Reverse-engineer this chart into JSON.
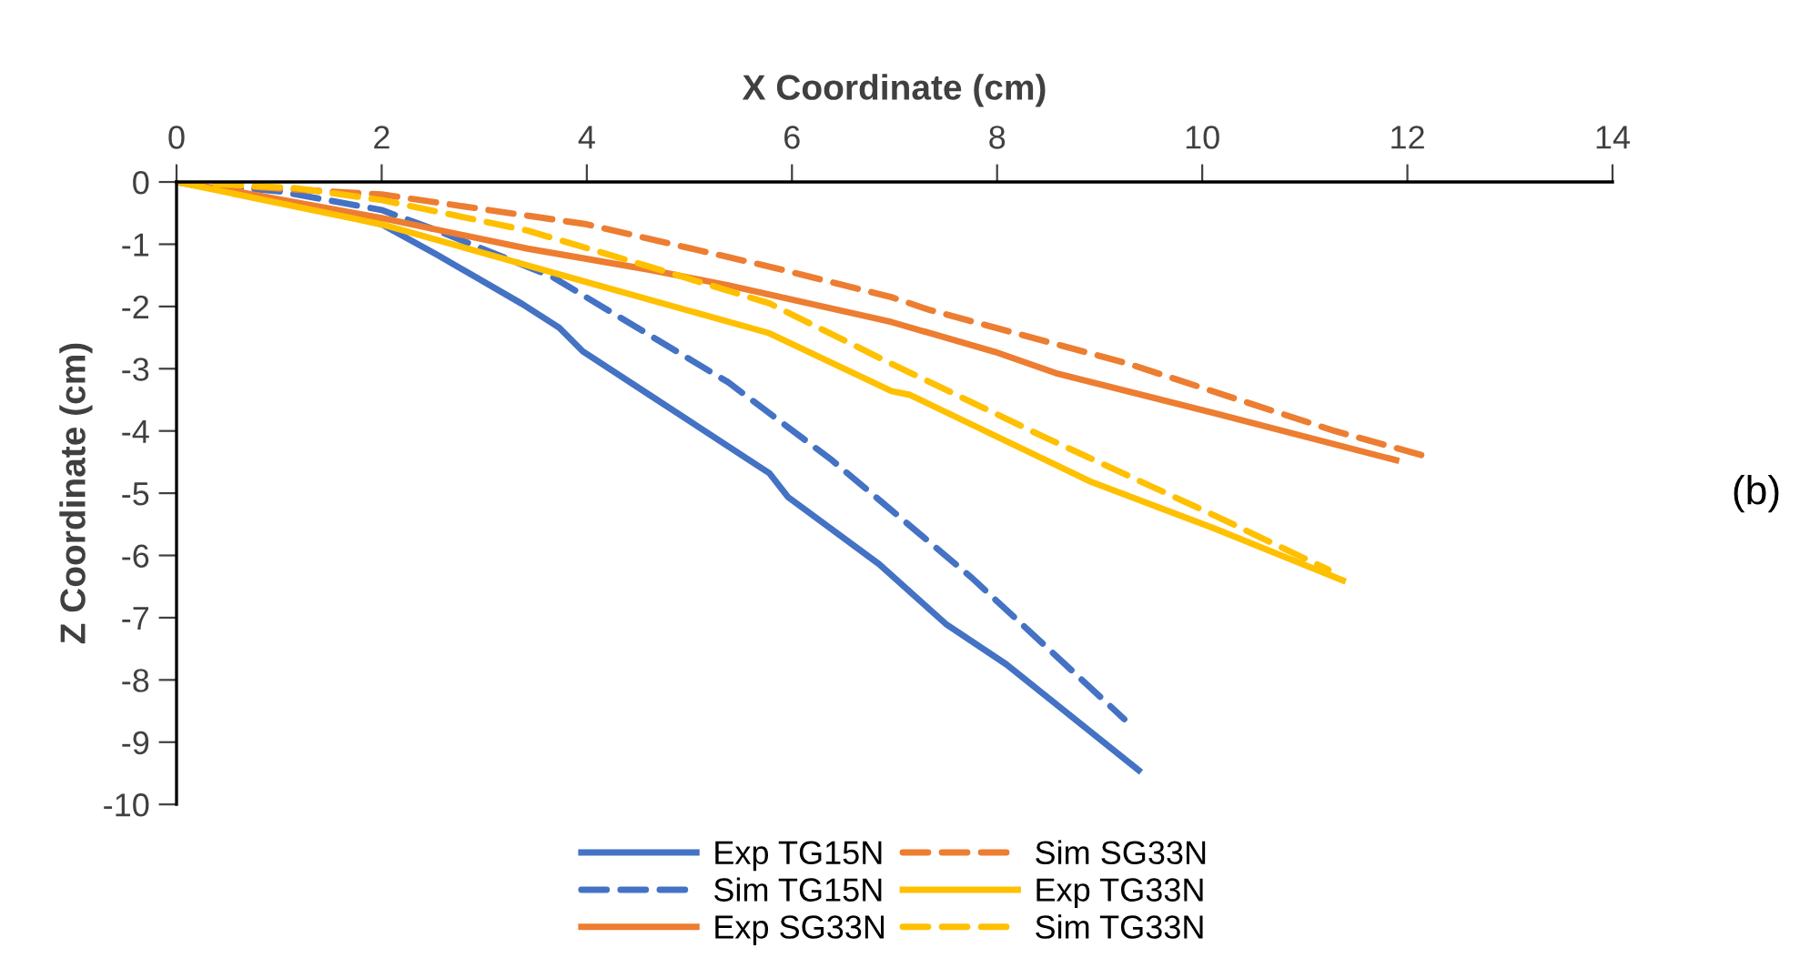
{
  "chart_data": {
    "type": "line",
    "xlabel": "X Coordinate (cm)",
    "ylabel": "Z Coordinate (cm)",
    "xlim": [
      0,
      14
    ],
    "xticks": [
      0,
      2,
      4,
      6,
      8,
      10,
      12,
      14
    ],
    "ylim": [
      -10,
      0
    ],
    "yticks": [
      -10,
      -9,
      -8,
      -7,
      -6,
      -5,
      -4,
      -3,
      -2,
      -1,
      0
    ],
    "grid": false,
    "legend": "bottom",
    "marker": "none",
    "annotations": [
      "(b)"
    ],
    "series": [
      {
        "name": "Exp TG15N",
        "color": "#4472c4",
        "line_style": "solid",
        "x": [
          0,
          1,
          2,
          2.54,
          3.37,
          3.73,
          3.96,
          4.61,
          5.78,
          5.96,
          6.85,
          7.5,
          8.09,
          9.38
        ],
        "values": [
          0,
          -0.3,
          -0.68,
          -1.17,
          -1.96,
          -2.34,
          -2.72,
          -3.42,
          -4.68,
          -5.06,
          -6.14,
          -7.1,
          -7.75,
          -9.45
        ]
      },
      {
        "name": "Sim TG15N",
        "color": "#4472c4",
        "line_style": "dashed",
        "x": [
          0,
          1,
          2,
          2.54,
          3.66,
          5.38,
          6.39,
          7.74,
          8.5,
          9.24
        ],
        "values": [
          0,
          -0.15,
          -0.45,
          -0.78,
          -1.52,
          -3.22,
          -4.47,
          -6.34,
          -7.5,
          -8.63
        ]
      },
      {
        "name": "Exp SG33N",
        "color": "#ed7d31",
        "line_style": "solid",
        "x": [
          0,
          0.58,
          2,
          3.42,
          4.61,
          5.38,
          6.97,
          7.98,
          8.57,
          10.11,
          11.89
        ],
        "values": [
          0,
          -0.15,
          -0.58,
          -1.07,
          -1.41,
          -1.66,
          -2.25,
          -2.73,
          -3.07,
          -3.71,
          -4.47
        ]
      },
      {
        "name": "Sim SG33N",
        "color": "#ed7d31",
        "line_style": "dashed",
        "x": [
          0,
          0.94,
          2,
          4,
          5.78,
          6.97,
          7.33,
          9.28,
          11.29,
          12.21
        ],
        "values": [
          0,
          -0.1,
          -0.2,
          -0.68,
          -1.36,
          -1.85,
          -2.05,
          -2.92,
          -4.0,
          -4.42
        ]
      },
      {
        "name": "Exp TG33N",
        "color": "#ffc000",
        "line_style": "solid",
        "x": [
          0,
          2,
          4,
          5.78,
          6.97,
          7.15,
          8.92,
          10.11,
          11.37
        ],
        "values": [
          0,
          -0.68,
          -1.61,
          -2.43,
          -3.36,
          -3.42,
          -4.82,
          -5.56,
          -6.4
        ]
      },
      {
        "name": "Sim TG33N",
        "color": "#ffc000",
        "line_style": "dashed",
        "x": [
          0,
          1.17,
          2,
          3.42,
          4.61,
          5.78,
          6.97,
          8.45,
          10.11,
          11.23
        ],
        "values": [
          0,
          -0.1,
          -0.29,
          -0.78,
          -1.36,
          -1.95,
          -2.92,
          -4.09,
          -5.35,
          -6.23
        ]
      }
    ]
  }
}
